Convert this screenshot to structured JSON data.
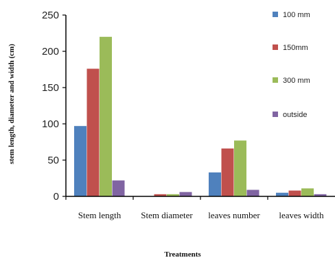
{
  "chart_data": {
    "type": "bar",
    "title": "",
    "xlabel": "Treatments",
    "ylabel": "stem length, diameter and width (cm)",
    "categories": [
      "Stem length",
      "Stem diameter",
      "leaves number",
      "leaves width"
    ],
    "series": [
      {
        "name": "100 mm",
        "color": "#4f81bd",
        "values": [
          97,
          0,
          33,
          5
        ]
      },
      {
        "name": "150mm",
        "color": "#c0504d",
        "values": [
          176,
          3,
          66,
          8
        ]
      },
      {
        "name": "300 mm",
        "color": "#9bbb59",
        "values": [
          220,
          3,
          77,
          11
        ]
      },
      {
        "name": "outside",
        "color": "#8064a2",
        "values": [
          22,
          6,
          9,
          3
        ]
      }
    ],
    "ylim": [
      0,
      250
    ],
    "yticks": [
      0,
      50,
      100,
      150,
      200,
      250
    ],
    "grid": false,
    "legend_position": "right"
  }
}
